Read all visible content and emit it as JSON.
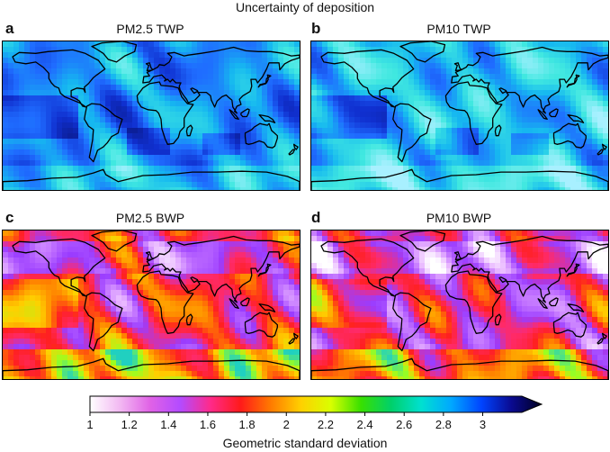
{
  "figure": {
    "title": "Uncertainty of deposition",
    "panels": [
      {
        "letter": "a",
        "title": "PM2.5 TWP",
        "scheme": "twp",
        "variant": 0
      },
      {
        "letter": "b",
        "title": "PM10 TWP",
        "scheme": "twp",
        "variant": 1
      },
      {
        "letter": "c",
        "title": "PM2.5 BWP",
        "scheme": "bwp",
        "variant": 0
      },
      {
        "letter": "d",
        "title": "PM10 BWP",
        "scheme": "bwp",
        "variant": 1
      }
    ]
  },
  "colorbar": {
    "label": "Geometric standard deviation",
    "ticks": [
      "1",
      "1.2",
      "1.4",
      "1.6",
      "1.8",
      "2",
      "2.2",
      "2.4",
      "2.6",
      "2.8",
      "3"
    ],
    "range": [
      1,
      3.3
    ],
    "extend": "max",
    "colors": [
      "#ffffff",
      "#f2b8f2",
      "#e062e6",
      "#b34bff",
      "#ff2a8a",
      "#ff1a1a",
      "#ff7a00",
      "#ffd000",
      "#d9ff00",
      "#38e000",
      "#00d06a",
      "#00e0d0",
      "#00a8ff",
      "#0044ff",
      "#0a0a90",
      "#000020"
    ]
  }
}
